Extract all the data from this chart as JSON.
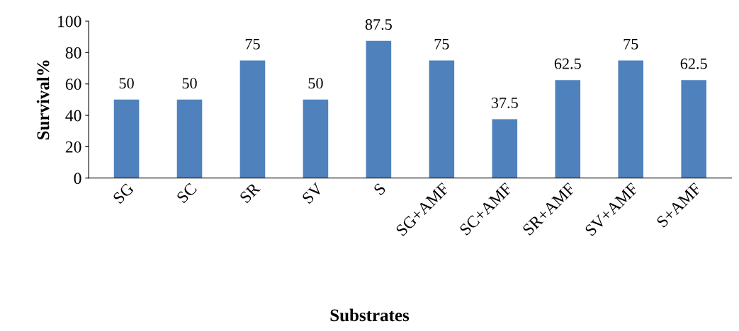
{
  "chart_data": {
    "type": "bar",
    "xlabel": "Substrates",
    "ylabel": "Survival%",
    "categories": [
      "SG",
      "SC",
      "SR",
      "SV",
      "S",
      "SG+AMF",
      "SC+AMF",
      "SR+AMF",
      "SV+AMF",
      "S+AMF"
    ],
    "values": [
      50,
      50,
      75,
      50,
      87.5,
      75,
      37.5,
      62.5,
      75,
      62.5
    ],
    "color": "#4f81bd",
    "ylim": [
      0,
      100
    ],
    "yticks": [
      0,
      20,
      40,
      60,
      80,
      100
    ],
    "grid": false,
    "data_labels": true,
    "legend": false
  }
}
